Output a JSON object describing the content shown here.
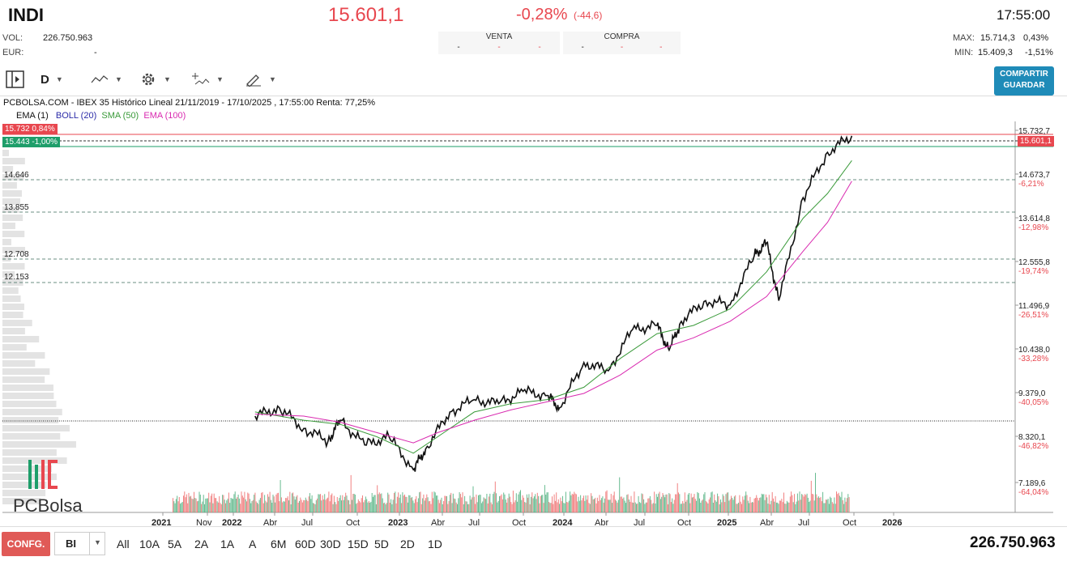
{
  "header": {
    "symbol": "INDI",
    "price": "15.601,1",
    "change_pct": "-0,28%",
    "change_abs": "(-44,6)",
    "time": "17:55:00",
    "vol_label": "VOL:",
    "vol_value": "226.750.963",
    "eur_label": "EUR:",
    "eur_value": "-",
    "venta_label": "VENTA",
    "compra_label": "COMPRA",
    "venta_cells": [
      "-",
      "-",
      "-"
    ],
    "compra_cells": [
      "-",
      "-",
      "-"
    ],
    "max_label": "MAX:",
    "max_value": "15.714,3",
    "max_pct": "0,43%",
    "min_label": "MIN:",
    "min_value": "15.409,3",
    "min_pct": "-1,51%"
  },
  "toolbar": {
    "period": "D",
    "share_line1": "COMPARTIR",
    "share_line2": "GUARDAR"
  },
  "legend": {
    "title": "PCBOLSA.COM - IBEX 35 Histórico Lineal 21/11/2019 - 17/10/2025 , 17:55:00 Renta: 77,25%",
    "ema1": "EMA (1)",
    "boll": "BOLL (20)",
    "sma": "SMA (50)",
    "ema100": "EMA (100)"
  },
  "colors": {
    "up": "#1e9e6a",
    "down": "#e8474f",
    "price_line": "#111111",
    "sma": "#3a9a3a",
    "ema100": "#d92ab0",
    "boll": "#2b2ba8",
    "accent": "#1f8bb8"
  },
  "levels": {
    "high_tag": "15.732  0,84%",
    "low_tag": "15.443  -1,00%",
    "left_levels": [
      "14.646",
      "13.855",
      "12.708",
      "12.153"
    ],
    "current_tag": "15.601,1"
  },
  "logo": "PCBolsa",
  "bottom": {
    "confg": "CONFG.",
    "bi": "BI",
    "timeframes": [
      "All",
      "10A",
      "5A",
      "2A",
      "1A",
      "A",
      "6M",
      "60D",
      "30D",
      "15D",
      "5D",
      "2D",
      "1D"
    ],
    "total_volume": "226.750.963"
  },
  "chart_data": {
    "type": "line",
    "title": "PCBOLSA.COM - IBEX 35 Histórico Lineal 21/11/2019 - 17/10/2025 , 17:55:00 Renta: 77,25%",
    "y_ticks": [
      {
        "value": "15.732,7",
        "pct": ""
      },
      {
        "value": "14.673,7",
        "pct": "-6,21%"
      },
      {
        "value": "13.614,8",
        "pct": "-12,98%"
      },
      {
        "value": "12.555,8",
        "pct": "-19,74%"
      },
      {
        "value": "11.496,9",
        "pct": "-26,51%"
      },
      {
        "value": "10.438,0",
        "pct": "-33,28%"
      },
      {
        "value": "9.379,0",
        "pct": "-40,05%"
      },
      {
        "value": "8.320,1",
        "pct": "-46,82%"
      },
      {
        "value": "7.189,6",
        "pct": "-64,04%"
      }
    ],
    "x_labels": [
      {
        "label": "2021",
        "bold": true
      },
      {
        "label": "Nov",
        "bold": false
      },
      {
        "label": "2022",
        "bold": true
      },
      {
        "label": "Abr",
        "bold": false
      },
      {
        "label": "Jul",
        "bold": false
      },
      {
        "label": "Oct",
        "bold": false
      },
      {
        "label": "2023",
        "bold": true
      },
      {
        "label": "Abr",
        "bold": false
      },
      {
        "label": "Jul",
        "bold": false
      },
      {
        "label": "Oct",
        "bold": false
      },
      {
        "label": "2024",
        "bold": true
      },
      {
        "label": "Abr",
        "bold": false
      },
      {
        "label": "Jul",
        "bold": false
      },
      {
        "label": "Oct",
        "bold": false
      },
      {
        "label": "2025",
        "bold": true
      },
      {
        "label": "Abr",
        "bold": false
      },
      {
        "label": "Jul",
        "bold": false
      },
      {
        "label": "Oct",
        "bold": false
      },
      {
        "label": "2026",
        "bold": true
      }
    ],
    "ylim": [
      7000,
      16000
    ],
    "series": [
      {
        "key": "ema1",
        "x": [
          "2021-09",
          "2021-11",
          "2022-01",
          "2022-03",
          "2022-04",
          "2022-06",
          "2022-08",
          "2022-10",
          "2022-11",
          "2023-01",
          "2023-03",
          "2023-05",
          "2023-07",
          "2023-09",
          "2023-10",
          "2023-12",
          "2024-02",
          "2024-04",
          "2024-06",
          "2024-07",
          "2024-08",
          "2024-10",
          "2024-12",
          "2025-02",
          "2025-03",
          "2025-04",
          "2025-06",
          "2025-08",
          "2025-10"
        ],
        "y": [
          8800,
          9000,
          8500,
          8200,
          8700,
          8100,
          8300,
          7500,
          8000,
          8900,
          9200,
          9100,
          9400,
          9300,
          9000,
          10100,
          9900,
          10900,
          11000,
          10400,
          11100,
          11600,
          11500,
          12700,
          13000,
          11600,
          14100,
          15200,
          15600
        ]
      },
      {
        "key": "sma",
        "x": [
          "2021-09",
          "2022-01",
          "2022-04",
          "2022-07",
          "2022-10",
          "2022-12",
          "2023-03",
          "2023-06",
          "2023-09",
          "2023-12",
          "2024-03",
          "2024-06",
          "2024-09",
          "2024-12",
          "2025-03",
          "2025-06",
          "2025-08",
          "2025-10"
        ],
        "y": [
          8900,
          8700,
          8600,
          8300,
          7900,
          8300,
          8900,
          9100,
          9200,
          9500,
          10200,
          10800,
          11000,
          11400,
          12300,
          13600,
          14200,
          15000
        ]
      },
      {
        "key": "ema100",
        "x": [
          "2021-09",
          "2022-01",
          "2022-04",
          "2022-07",
          "2022-10",
          "2022-12",
          "2023-03",
          "2023-06",
          "2023-09",
          "2023-12",
          "2024-03",
          "2024-06",
          "2024-09",
          "2024-12",
          "2025-03",
          "2025-06",
          "2025-08",
          "2025-10"
        ],
        "y": [
          8850,
          8800,
          8650,
          8400,
          8150,
          8400,
          8700,
          8950,
          9150,
          9350,
          9800,
          10400,
          10700,
          11100,
          11700,
          12800,
          13500,
          14500
        ]
      }
    ]
  }
}
